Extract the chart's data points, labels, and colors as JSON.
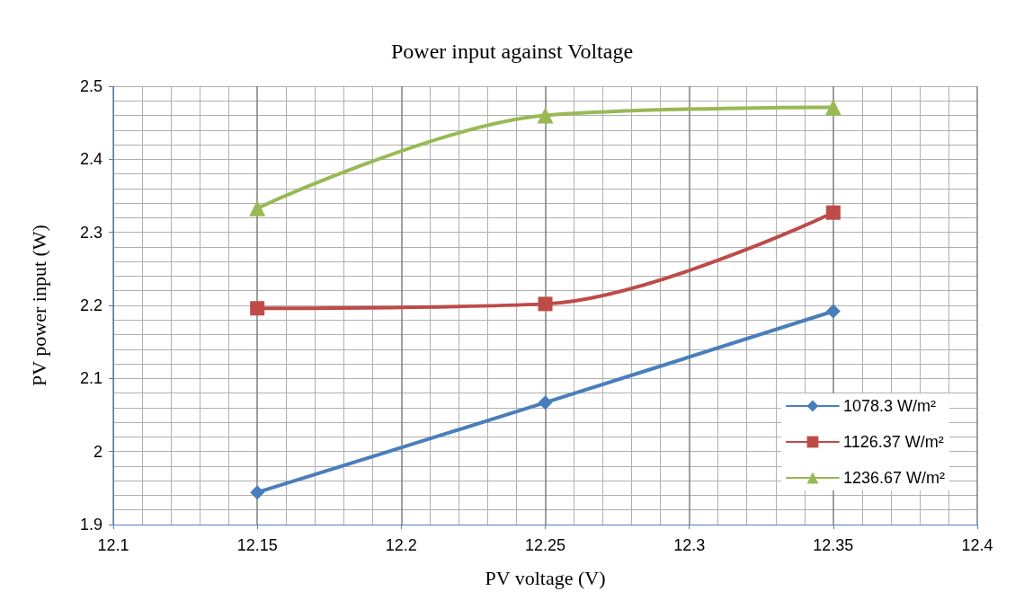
{
  "chart_data": {
    "type": "line",
    "title": "Power input against Voltage",
    "xlabel": "PV voltage (V)",
    "ylabel": "PV power input (W)",
    "x": [
      12.15,
      12.25,
      12.35
    ],
    "series": [
      {
        "name": "1078.3 W/m²",
        "color": "#4a7ebb",
        "marker": "diamond",
        "values": [
          1.944,
          2.067,
          2.192
        ]
      },
      {
        "name": "1126.37 W/m²",
        "color": "#be4b48",
        "marker": "square",
        "values": [
          2.196,
          2.202,
          2.327
        ]
      },
      {
        "name": "1236.67 W/m²",
        "color": "#98b954",
        "marker": "triangle",
        "values": [
          2.333,
          2.46,
          2.471
        ]
      }
    ],
    "xlim": [
      12.1,
      12.4
    ],
    "xticks": [
      12.1,
      12.15,
      12.2,
      12.25,
      12.3,
      12.35,
      12.4
    ],
    "ylim": [
      1.9,
      2.5
    ],
    "yticks": [
      1.9,
      2,
      2.1,
      2.2,
      2.3,
      2.4,
      2.5
    ],
    "grid": true,
    "legend": "right",
    "line_style": "solid"
  }
}
